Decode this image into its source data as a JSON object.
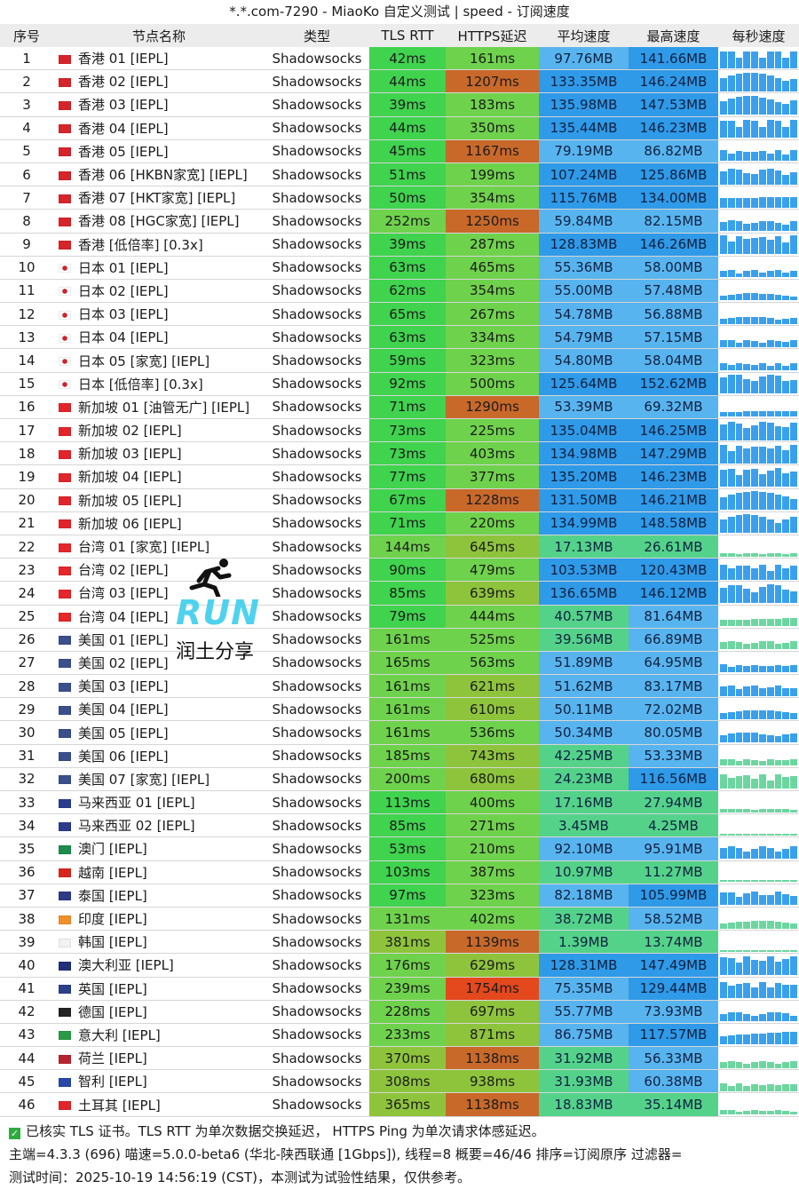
{
  "title": "*.*.com-7290 - MiaoKo 自定义测试 | speed - 订阅速度",
  "headers": [
    "序号",
    "节点名称",
    "类型",
    "TLS RTT",
    "HTTPS延迟",
    "平均速度",
    "最高速度",
    "每秒速度"
  ],
  "rows": [
    {
      "idx": "1",
      "name": "香港 01 [IEPL]",
      "type": "Shadowsocks",
      "tls": "42ms",
      "https": "161ms",
      "avg": "97.76MB",
      "max": "141.66MB",
      "flag": "hk"
    },
    {
      "idx": "2",
      "name": "香港 02 [IEPL]",
      "type": "Shadowsocks",
      "tls": "44ms",
      "https": "1207ms",
      "avg": "133.35MB",
      "max": "146.24MB",
      "flag": "hk"
    },
    {
      "idx": "3",
      "name": "香港 03 [IEPL]",
      "type": "Shadowsocks",
      "tls": "39ms",
      "https": "183ms",
      "avg": "135.98MB",
      "max": "147.53MB",
      "flag": "hk"
    },
    {
      "idx": "4",
      "name": "香港 04 [IEPL]",
      "type": "Shadowsocks",
      "tls": "44ms",
      "https": "350ms",
      "avg": "135.44MB",
      "max": "146.23MB",
      "flag": "hk"
    },
    {
      "idx": "5",
      "name": "香港 05 [IEPL]",
      "type": "Shadowsocks",
      "tls": "45ms",
      "https": "1167ms",
      "avg": "79.19MB",
      "max": "86.82MB",
      "flag": "hk"
    },
    {
      "idx": "6",
      "name": "香港 06 [HKBN家宽] [IEPL]",
      "type": "Shadowsocks",
      "tls": "51ms",
      "https": "199ms",
      "avg": "107.24MB",
      "max": "125.86MB",
      "flag": "hk"
    },
    {
      "idx": "7",
      "name": "香港 07 [HKT家宽] [IEPL]",
      "type": "Shadowsocks",
      "tls": "50ms",
      "https": "354ms",
      "avg": "115.76MB",
      "max": "134.00MB",
      "flag": "hk"
    },
    {
      "idx": "8",
      "name": "香港 08 [HGC家宽] [IEPL]",
      "type": "Shadowsocks",
      "tls": "252ms",
      "https": "1250ms",
      "avg": "59.84MB",
      "max": "82.15MB",
      "flag": "hk"
    },
    {
      "idx": "9",
      "name": "香港 [低倍率] [0.3x]",
      "type": "Shadowsocks",
      "tls": "39ms",
      "https": "287ms",
      "avg": "128.83MB",
      "max": "146.26MB",
      "flag": "hk"
    },
    {
      "idx": "10",
      "name": "日本 01 [IEPL]",
      "type": "Shadowsocks",
      "tls": "63ms",
      "https": "465ms",
      "avg": "55.36MB",
      "max": "58.00MB",
      "flag": "jp"
    },
    {
      "idx": "11",
      "name": "日本 02 [IEPL]",
      "type": "Shadowsocks",
      "tls": "62ms",
      "https": "354ms",
      "avg": "55.00MB",
      "max": "57.48MB",
      "flag": "jp"
    },
    {
      "idx": "12",
      "name": "日本 03 [IEPL]",
      "type": "Shadowsocks",
      "tls": "65ms",
      "https": "267ms",
      "avg": "54.78MB",
      "max": "56.88MB",
      "flag": "jp"
    },
    {
      "idx": "13",
      "name": "日本 04 [IEPL]",
      "type": "Shadowsocks",
      "tls": "63ms",
      "https": "334ms",
      "avg": "54.79MB",
      "max": "57.15MB",
      "flag": "jp"
    },
    {
      "idx": "14",
      "name": "日本 05 [家宽] [IEPL]",
      "type": "Shadowsocks",
      "tls": "59ms",
      "https": "323ms",
      "avg": "54.80MB",
      "max": "58.04MB",
      "flag": "jp"
    },
    {
      "idx": "15",
      "name": "日本 [低倍率] [0.3x]",
      "type": "Shadowsocks",
      "tls": "92ms",
      "https": "500ms",
      "avg": "125.64MB",
      "max": "152.62MB",
      "flag": "jp"
    },
    {
      "idx": "16",
      "name": "新加坡 01 [油管无广] [IEPL]",
      "type": "Shadowsocks",
      "tls": "71ms",
      "https": "1290ms",
      "avg": "53.39MB",
      "max": "69.32MB",
      "flag": "sg"
    },
    {
      "idx": "17",
      "name": "新加坡 02 [IEPL]",
      "type": "Shadowsocks",
      "tls": "73ms",
      "https": "225ms",
      "avg": "135.04MB",
      "max": "146.25MB",
      "flag": "sg"
    },
    {
      "idx": "18",
      "name": "新加坡 03 [IEPL]",
      "type": "Shadowsocks",
      "tls": "73ms",
      "https": "403ms",
      "avg": "134.98MB",
      "max": "147.29MB",
      "flag": "sg"
    },
    {
      "idx": "19",
      "name": "新加坡 04 [IEPL]",
      "type": "Shadowsocks",
      "tls": "77ms",
      "https": "377ms",
      "avg": "135.20MB",
      "max": "146.23MB",
      "flag": "sg"
    },
    {
      "idx": "20",
      "name": "新加坡 05 [IEPL]",
      "type": "Shadowsocks",
      "tls": "67ms",
      "https": "1228ms",
      "avg": "131.50MB",
      "max": "146.21MB",
      "flag": "sg"
    },
    {
      "idx": "21",
      "name": "新加坡 06 [IEPL]",
      "type": "Shadowsocks",
      "tls": "71ms",
      "https": "220ms",
      "avg": "134.99MB",
      "max": "148.58MB",
      "flag": "sg"
    },
    {
      "idx": "22",
      "name": "台湾 01 [家宽] [IEPL]",
      "type": "Shadowsocks",
      "tls": "144ms",
      "https": "645ms",
      "avg": "17.13MB",
      "max": "26.61MB",
      "flag": "tw"
    },
    {
      "idx": "23",
      "name": "台湾 02 [IEPL]",
      "type": "Shadowsocks",
      "tls": "90ms",
      "https": "479ms",
      "avg": "103.53MB",
      "max": "120.43MB",
      "flag": "tw"
    },
    {
      "idx": "24",
      "name": "台湾 03 [IEPL]",
      "type": "Shadowsocks",
      "tls": "85ms",
      "https": "639ms",
      "avg": "136.65MB",
      "max": "146.12MB",
      "flag": "tw"
    },
    {
      "idx": "25",
      "name": "台湾 04 [IEPL]",
      "type": "Shadowsocks",
      "tls": "79ms",
      "https": "444ms",
      "avg": "40.57MB",
      "max": "81.64MB",
      "flag": "tw"
    },
    {
      "idx": "26",
      "name": "美国 01 [IEPL]",
      "type": "Shadowsocks",
      "tls": "161ms",
      "https": "525ms",
      "avg": "39.56MB",
      "max": "66.89MB",
      "flag": "us"
    },
    {
      "idx": "27",
      "name": "美国 02 [IEPL]",
      "type": "Shadowsocks",
      "tls": "165ms",
      "https": "563ms",
      "avg": "51.89MB",
      "max": "64.95MB",
      "flag": "us"
    },
    {
      "idx": "28",
      "name": "美国 03 [IEPL]",
      "type": "Shadowsocks",
      "tls": "161ms",
      "https": "621ms",
      "avg": "51.62MB",
      "max": "83.17MB",
      "flag": "us"
    },
    {
      "idx": "29",
      "name": "美国 04 [IEPL]",
      "type": "Shadowsocks",
      "tls": "161ms",
      "https": "610ms",
      "avg": "50.11MB",
      "max": "72.02MB",
      "flag": "us"
    },
    {
      "idx": "30",
      "name": "美国 05 [IEPL]",
      "type": "Shadowsocks",
      "tls": "161ms",
      "https": "536ms",
      "avg": "50.34MB",
      "max": "80.05MB",
      "flag": "us"
    },
    {
      "idx": "31",
      "name": "美国 06 [IEPL]",
      "type": "Shadowsocks",
      "tls": "185ms",
      "https": "743ms",
      "avg": "42.25MB",
      "max": "53.33MB",
      "flag": "us"
    },
    {
      "idx": "32",
      "name": "美国 07 [家宽] [IEPL]",
      "type": "Shadowsocks",
      "tls": "200ms",
      "https": "680ms",
      "avg": "24.23MB",
      "max": "116.56MB",
      "flag": "us"
    },
    {
      "idx": "33",
      "name": "马来西亚 01 [IEPL]",
      "type": "Shadowsocks",
      "tls": "113ms",
      "https": "400ms",
      "avg": "17.16MB",
      "max": "27.94MB",
      "flag": "my"
    },
    {
      "idx": "34",
      "name": "马来西亚 02 [IEPL]",
      "type": "Shadowsocks",
      "tls": "85ms",
      "https": "271ms",
      "avg": "3.45MB",
      "max": "4.25MB",
      "flag": "my"
    },
    {
      "idx": "35",
      "name": "澳门 [IEPL]",
      "type": "Shadowsocks",
      "tls": "53ms",
      "https": "210ms",
      "avg": "92.10MB",
      "max": "95.91MB",
      "flag": "mo"
    },
    {
      "idx": "36",
      "name": "越南 [IEPL]",
      "type": "Shadowsocks",
      "tls": "103ms",
      "https": "387ms",
      "avg": "10.97MB",
      "max": "11.27MB",
      "flag": "vn"
    },
    {
      "idx": "37",
      "name": "泰国 [IEPL]",
      "type": "Shadowsocks",
      "tls": "97ms",
      "https": "323ms",
      "avg": "82.18MB",
      "max": "105.99MB",
      "flag": "th"
    },
    {
      "idx": "38",
      "name": "印度 [IEPL]",
      "type": "Shadowsocks",
      "tls": "131ms",
      "https": "402ms",
      "avg": "38.72MB",
      "max": "58.52MB",
      "flag": "in"
    },
    {
      "idx": "39",
      "name": "韩国 [IEPL]",
      "type": "Shadowsocks",
      "tls": "381ms",
      "https": "1139ms",
      "avg": "1.39MB",
      "max": "13.74MB",
      "flag": "kr"
    },
    {
      "idx": "40",
      "name": "澳大利亚 [IEPL]",
      "type": "Shadowsocks",
      "tls": "176ms",
      "https": "629ms",
      "avg": "128.31MB",
      "max": "147.49MB",
      "flag": "au"
    },
    {
      "idx": "41",
      "name": "英国 [IEPL]",
      "type": "Shadowsocks",
      "tls": "239ms",
      "https": "1754ms",
      "avg": "75.35MB",
      "max": "129.44MB",
      "flag": "gb"
    },
    {
      "idx": "42",
      "name": "德国 [IEPL]",
      "type": "Shadowsocks",
      "tls": "228ms",
      "https": "697ms",
      "avg": "55.77MB",
      "max": "73.93MB",
      "flag": "de"
    },
    {
      "idx": "43",
      "name": "意大利 [IEPL]",
      "type": "Shadowsocks",
      "tls": "233ms",
      "https": "871ms",
      "avg": "86.75MB",
      "max": "117.57MB",
      "flag": "it"
    },
    {
      "idx": "44",
      "name": "荷兰 [IEPL]",
      "type": "Shadowsocks",
      "tls": "370ms",
      "https": "1138ms",
      "avg": "31.92MB",
      "max": "56.33MB",
      "flag": "nl"
    },
    {
      "idx": "45",
      "name": "智利 [IEPL]",
      "type": "Shadowsocks",
      "tls": "308ms",
      "https": "938ms",
      "avg": "31.93MB",
      "max": "60.38MB",
      "flag": "cl"
    },
    {
      "idx": "46",
      "name": "土耳其 [IEPL]",
      "type": "Shadowsocks",
      "tls": "365ms",
      "https": "1138ms",
      "avg": "18.83MB",
      "max": "35.14MB",
      "flag": "tr"
    }
  ],
  "footer": {
    "line1": "已核实 TLS 证书。TLS RTT 为单次数据交换延迟， HTTPS Ping 为单次请求体感延迟。",
    "line2": "主端=4.3.3 (696) 喵速=5.0.0-beta6 (华北-陕西联通 [1Gbps]), 线程=8 概要=46/46 排序=订阅原序 过滤器=",
    "line3": "测试时间：2025-10-19 14:56:19 (CST)，本测试为试验性结果，仅供参考。"
  },
  "logo": {
    "run": "RUN",
    "cn": "润土分享"
  },
  "colors": {
    "tls_green": "#3fd34e",
    "https_green": "#6fd24c",
    "https_olive": "#8ec43c",
    "https_orange": "#c8692a",
    "https_red": "#e4481d",
    "speed_blue": "#2f9ae8",
    "speed_light_blue": "#58b4ee",
    "speed_green": "#54d28a",
    "header_bg": "#ececec"
  },
  "flag_colors": {
    "hk": "#d7242a",
    "jp": "#ffffff",
    "sg": "#e3242b",
    "tw": "#e6262a",
    "us": "#3b4f8c",
    "my": "#2b3c8f",
    "mo": "#1d8c4e",
    "vn": "#d8251f",
    "th": "#2d3a87",
    "in": "#f0902a",
    "kr": "#f2f2f2",
    "au": "#22307a",
    "gb": "#2b3f8a",
    "de": "#222222",
    "it": "#2a9a47",
    "nl": "#b7242e",
    "cl": "#2b48a8",
    "tr": "#e1262b"
  }
}
